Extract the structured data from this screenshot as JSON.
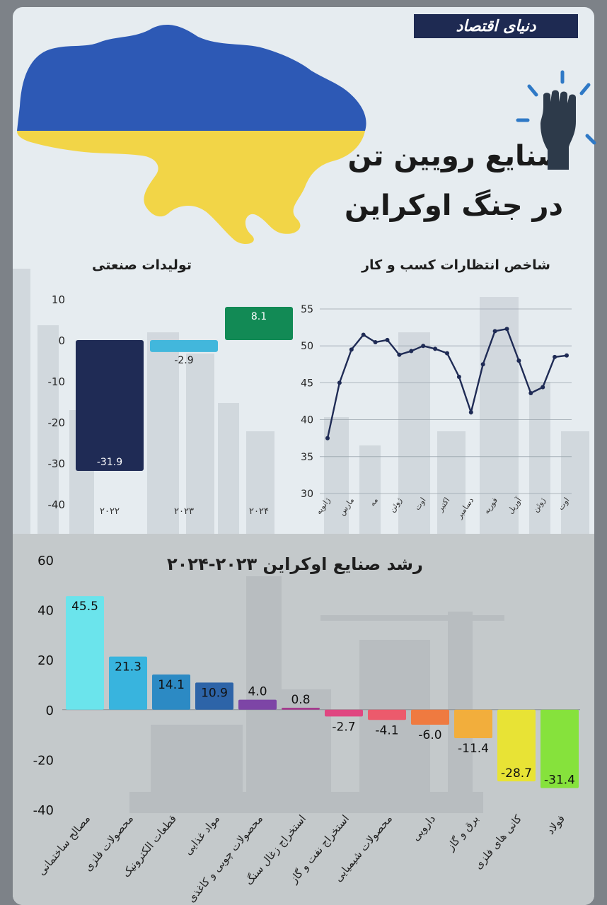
{
  "brand": "دنیای اقتصاد",
  "title_line1": "صنایع رویین تن",
  "title_line2": "در جنگ اوکراین",
  "icon": "raised-fist-icon",
  "colors": {
    "navy": "#1e2a52",
    "teal": "#3ab6d6",
    "green": "#138a54"
  },
  "chart_data": [
    {
      "type": "bar",
      "title": "تولیدات صنعتی",
      "categories": [
        "۲۰۲۲",
        "۲۰۲۳",
        "۲۰۲۴"
      ],
      "values": [
        -31.9,
        -2.9,
        8.1
      ],
      "value_labels": [
        "-31.9",
        "-2.9",
        "8.1"
      ],
      "colors": [
        "#1f2b55",
        "#42b7dc",
        "#128a55"
      ],
      "ylim": [
        -40,
        10
      ],
      "yticks": [
        10,
        0,
        -10,
        -20,
        -30,
        -40
      ],
      "grid": false
    },
    {
      "type": "line",
      "title": "شاخص انتظارات کسب و کار",
      "x_labels": [
        "ژانویه",
        "مارس",
        "مه",
        "ژوئن",
        "اوت",
        "اکتبر",
        "دسامبر",
        "فوریه",
        "آوریل",
        "ژوئن",
        "اوت"
      ],
      "values": [
        37.5,
        45.0,
        49.5,
        51.5,
        50.5,
        50.8,
        48.8,
        49.3,
        50.0,
        49.6,
        49.0,
        45.8,
        41.0,
        47.5,
        52.0,
        52.3,
        48.0,
        43.6,
        44.4,
        48.5,
        48.7
      ],
      "ylim": [
        30,
        55
      ],
      "yticks": [
        55,
        50,
        45,
        40,
        35,
        30
      ],
      "grid": true
    },
    {
      "type": "bar",
      "title": "رشد صنایع اوکراین ۲۰۲۳-۲۰۲۴",
      "categories": [
        "مصالح ساختمانی",
        "محصولات فلزی",
        "قطعات الکترونیک",
        "مواد غذایی",
        "محصولات چوبی و کاغذی",
        "استخراج زغال سنگ",
        "استخراج نفت و گاز",
        "محصولات شیمیایی",
        "دارویی",
        "برق و گاز",
        "کانی های فلزی",
        "فولاد"
      ],
      "values": [
        45.5,
        21.3,
        14.1,
        10.9,
        4.0,
        0.8,
        -2.7,
        -4.1,
        -6.0,
        -11.4,
        -28.7,
        -31.4
      ],
      "value_labels": [
        "45.5",
        "21.3",
        "14.1",
        "10.9",
        "4.0",
        "0.8",
        "-2.7",
        "-4.1",
        "-6.0",
        "-11.4",
        "-28.7",
        "-31.4"
      ],
      "colors": [
        "#6be4ec",
        "#38b4de",
        "#2c8ac4",
        "#2d64a8",
        "#7d45a6",
        "#a53a8e",
        "#e04681",
        "#ec5a6c",
        "#ef7a40",
        "#f2ae3c",
        "#e8e335",
        "#86e23c"
      ],
      "ylim": [
        -40,
        60
      ],
      "yticks": [
        60,
        40,
        20,
        0,
        -20,
        -40
      ],
      "grid": false
    }
  ]
}
